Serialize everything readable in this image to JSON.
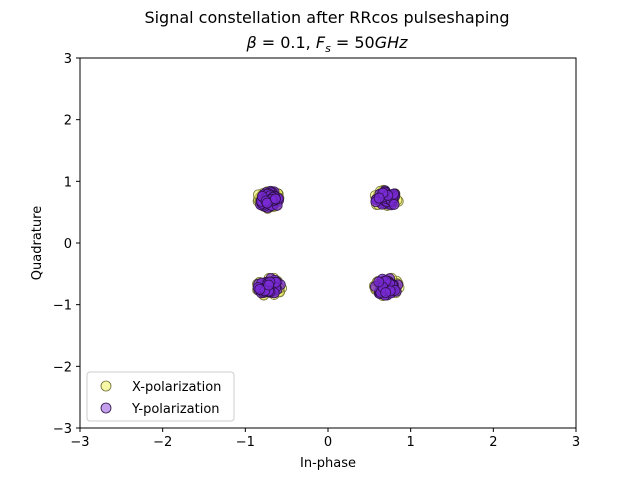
{
  "chart_data": {
    "type": "scatter",
    "title": "Signal constellation after RRcos pulseshaping",
    "subtitle": "β = 0.1, F_s = 50GHz",
    "xlabel": "In-phase",
    "ylabel": "Quadrature",
    "xlim": [
      -3,
      3
    ],
    "ylim": [
      -3,
      3
    ],
    "xticks": [
      "−3",
      "−2",
      "−1",
      "0",
      "1",
      "2",
      "3"
    ],
    "yticks": [
      "−3",
      "−2",
      "−1",
      "0",
      "1",
      "2",
      "3"
    ],
    "grid": false,
    "legend_position": "lower-left",
    "series": [
      {
        "name": "X-polarization",
        "color": "#f0f060",
        "edge_color": "#6b6b2a",
        "cluster_centers": [
          [
            -0.71,
            0.71
          ],
          [
            0.71,
            0.71
          ],
          [
            -0.71,
            -0.71
          ],
          [
            0.71,
            -0.71
          ]
        ],
        "cluster_spread": 0.12
      },
      {
        "name": "Y-polarization",
        "color": "#7a2bd6",
        "edge_color": "#2a1040",
        "cluster_centers": [
          [
            -0.71,
            0.71
          ],
          [
            0.71,
            0.71
          ],
          [
            -0.71,
            -0.71
          ],
          [
            0.71,
            -0.71
          ]
        ],
        "cluster_spread": 0.11
      }
    ]
  }
}
